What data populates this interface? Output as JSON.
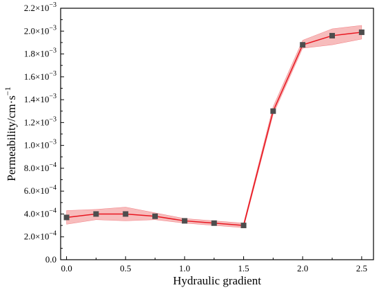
{
  "chart_data": {
    "type": "line",
    "xlabel": "Hydraulic gradient",
    "ylabel_main": "Permeability/cm·s",
    "ylabel_sup": "−1",
    "x": [
      0.0,
      0.25,
      0.5,
      0.75,
      1.0,
      1.25,
      1.5,
      1.75,
      2.0,
      2.25,
      2.5
    ],
    "series": [
      {
        "values": [
          0.00037,
          0.0004,
          0.0004,
          0.00038,
          0.00034,
          0.00032,
          0.0003,
          0.0013,
          0.00188,
          0.00196,
          0.00199
        ],
        "lower": [
          0.00031,
          0.00035,
          0.00034,
          0.00035,
          0.00032,
          0.0003,
          0.00028,
          0.00127,
          0.00185,
          0.00188,
          0.00193
        ],
        "upper": [
          0.00043,
          0.00044,
          0.00046,
          0.00041,
          0.00036,
          0.00034,
          0.00032,
          0.00134,
          0.00192,
          0.00202,
          0.00205
        ],
        "line_color": "#e8141e",
        "band_color": "#f4a6a6",
        "marker_color": "#4d4d4d",
        "marker": "square"
      }
    ],
    "xlim": [
      -0.05,
      2.6
    ],
    "ylim": [
      0,
      0.0022
    ],
    "xticks": [
      0.0,
      0.5,
      1.0,
      1.5,
      2.0,
      2.5
    ],
    "xtick_labels": [
      "0.0",
      "0.5",
      "1.0",
      "1.5",
      "2.0",
      "2.5"
    ],
    "yticks": [
      0,
      0.0002,
      0.0004,
      0.0006,
      0.0008,
      0.001,
      0.0012,
      0.0014,
      0.0016,
      0.0018,
      0.002,
      0.0022
    ],
    "ytick_mantissas": [
      "0.0",
      "2.0×10",
      "4.0×10",
      "6.0×10",
      "8.0×10",
      "1.0×10",
      "1.2×10",
      "1.4×10",
      "1.6×10",
      "1.8×10",
      "2.0×10",
      "2.2×10"
    ],
    "ytick_exponents": [
      "",
      "−4",
      "−4",
      "−4",
      "−4",
      "−3",
      "−3",
      "−3",
      "−3",
      "−3",
      "−3",
      "−3"
    ],
    "grid": false,
    "legend": "none"
  }
}
